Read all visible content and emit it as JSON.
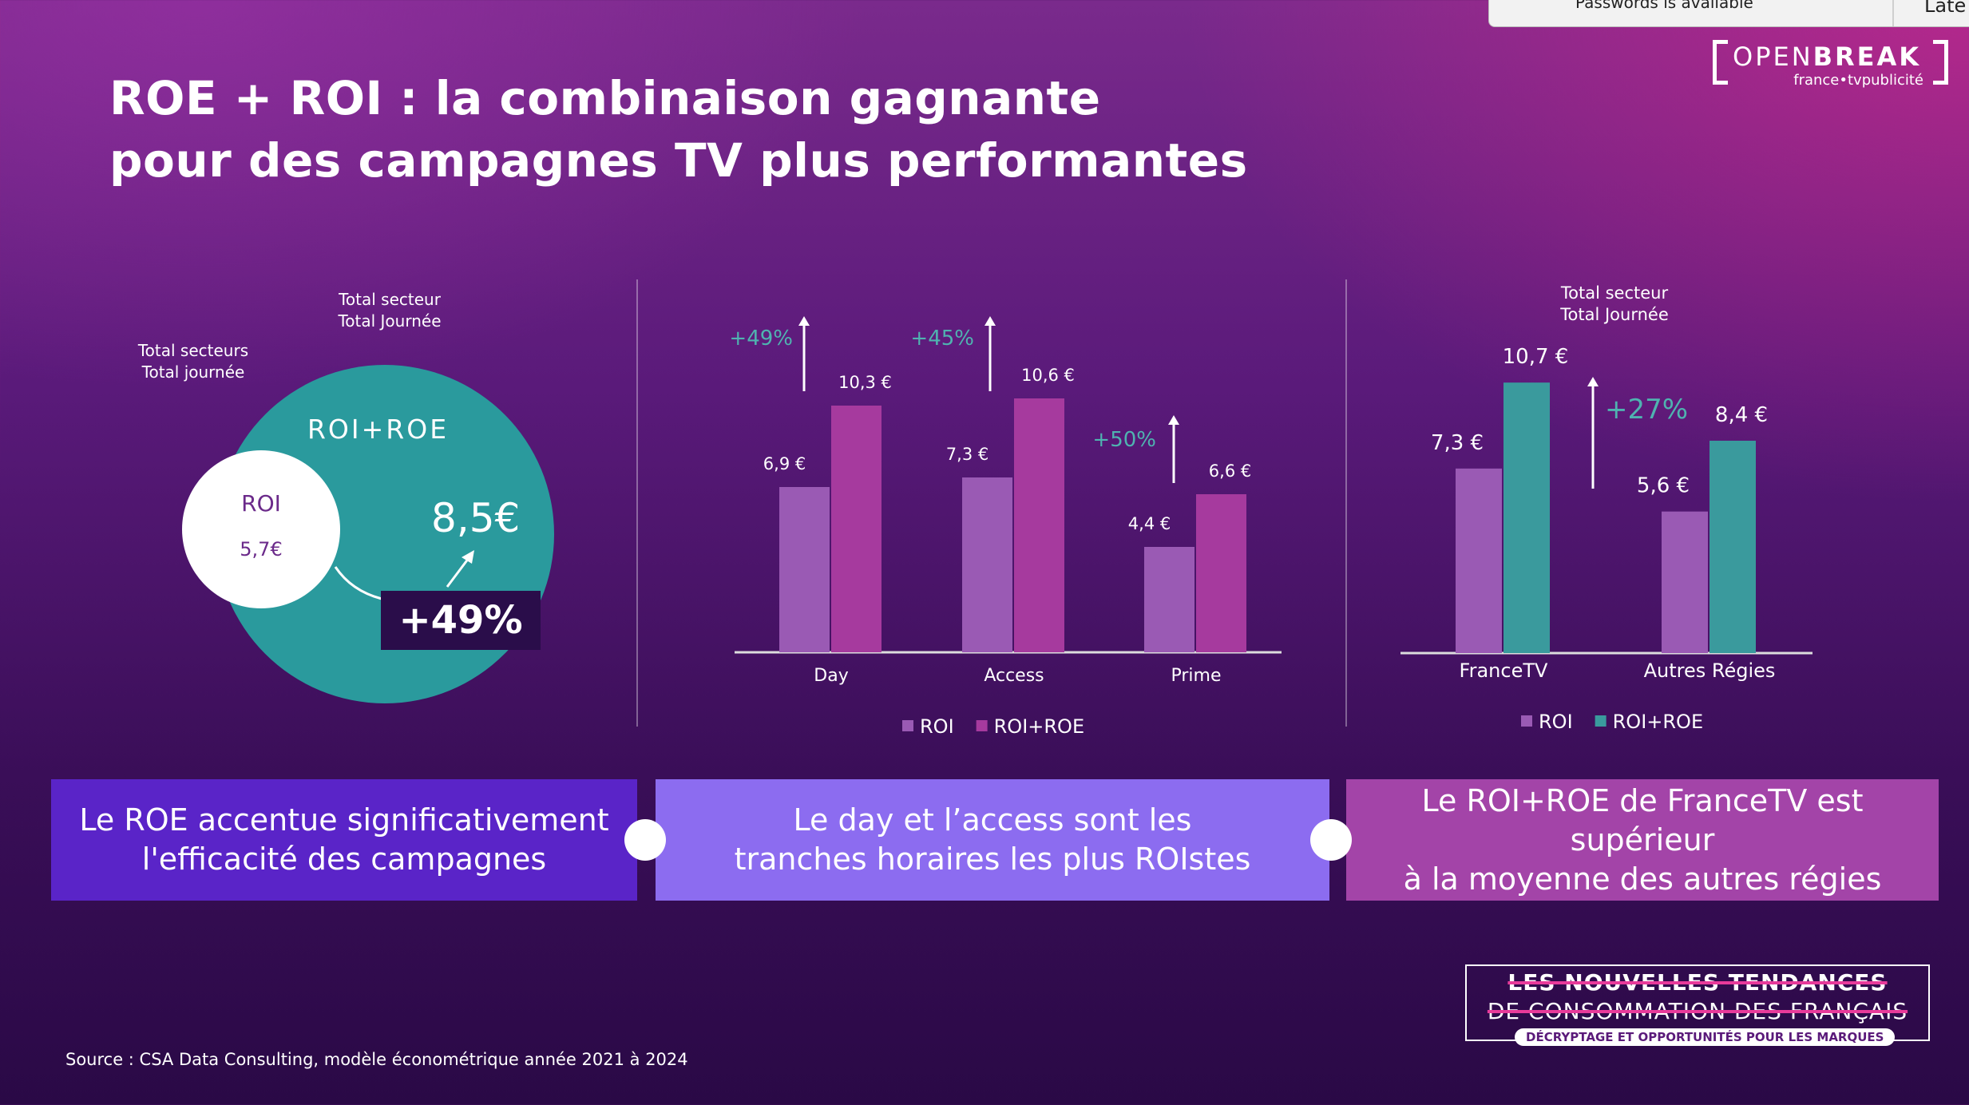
{
  "title": {
    "line1": "ROE + ROI : la combinaison gagnante",
    "line2": "pour des campagnes TV plus performantes"
  },
  "popup": {
    "text1": "Passwords is available",
    "text2": "Late"
  },
  "logo": {
    "part1": "OPEN",
    "part2": "BREAK",
    "sub": "france•tvpublicité"
  },
  "left_panel": {
    "label_outer_1": "Total secteur",
    "label_outer_2": "Total Journée",
    "label_inner_1": "Total secteurs",
    "label_inner_2": "Total journée",
    "outer_name": "ROI+ROE",
    "outer_value": "8,5€",
    "inner_name": "ROI",
    "inner_value": "5,7€",
    "uplift": "+49%"
  },
  "chart_data": [
    {
      "type": "bar",
      "categories": [
        "Day",
        "Access",
        "Prime"
      ],
      "series": [
        {
          "name": "ROI",
          "values": [
            6.9,
            7.3,
            4.4
          ],
          "labels": [
            "6,9 €",
            "7,3 €",
            "4,4 €"
          ],
          "color": "#9a5ab4"
        },
        {
          "name": "ROI+ROE",
          "values": [
            10.3,
            10.6,
            6.6
          ],
          "labels": [
            "10,3 €",
            "10,6 €",
            "6,6 €"
          ],
          "color": "#a63a9e"
        }
      ],
      "uplifts": [
        "+49%",
        "+45%",
        "+50%"
      ],
      "uplift_color": "#4fb3b0",
      "ylim": [
        0,
        12
      ],
      "legend": "bottom"
    },
    {
      "type": "bar",
      "title_line1": "Total secteur",
      "title_line2": "Total Journée",
      "categories": [
        "FranceTV",
        "Autres Régies"
      ],
      "series": [
        {
          "name": "ROI",
          "values": [
            7.3,
            5.6
          ],
          "labels": [
            "7,3 €",
            "5,6 €"
          ],
          "color": "#9a5ab4"
        },
        {
          "name": "ROI+ROE",
          "values": [
            10.7,
            8.4
          ],
          "labels": [
            "10,7 €",
            "8,4 €"
          ],
          "color": "#3a9a9d"
        }
      ],
      "uplifts": [
        "+27%"
      ],
      "uplift_color": "#4fb3b0",
      "ylim": [
        0,
        12
      ],
      "legend": "bottom"
    }
  ],
  "boxes": [
    {
      "line1": "Le ROE accentue significativement",
      "line2": "l'efficacité des campagnes",
      "color": "#5a24c8"
    },
    {
      "line1": "Le day et l’access sont les",
      "line2": "tranches horaires les plus ROIstes",
      "color": "#8c6cf0"
    },
    {
      "line1": "Le ROI+ROE de FranceTV est supérieur",
      "line2": "à la moyenne des autres régies",
      "color": "#a344a8"
    }
  ],
  "tagline": {
    "line1": "LES NOUVELLES TENDANCES",
    "line2": "DE CONSOMMATION DES FRANÇAIS",
    "line3": "DÉCRYPTAGE ET OPPORTUNITÉS POUR LES MARQUES"
  },
  "source": "Source : CSA Data Consulting, modèle économétrique année 2021 à 2024"
}
